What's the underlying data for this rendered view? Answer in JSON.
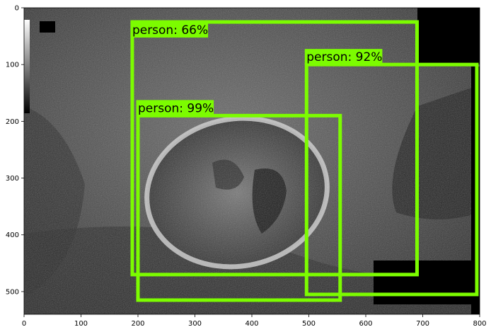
{
  "axes": {
    "x_ticks": [
      "0",
      "100",
      "200",
      "300",
      "400",
      "500",
      "600",
      "700",
      "800"
    ],
    "y_ticks": [
      "0",
      "100",
      "200",
      "300",
      "400",
      "500"
    ],
    "xlim": [
      0,
      800
    ],
    "ylim": [
      540,
      0
    ]
  },
  "box_color": "#7cfc00",
  "detections": [
    {
      "label": "person: 92%",
      "x1": 496,
      "y1": 100,
      "x2": 795,
      "y2": 505
    },
    {
      "label": "person: 99%",
      "x1": 200,
      "y1": 190,
      "x2": 555,
      "y2": 515
    },
    {
      "label": "person: 66%",
      "x1": 190,
      "y1": 25,
      "x2": 690,
      "y2": 470
    }
  ]
}
